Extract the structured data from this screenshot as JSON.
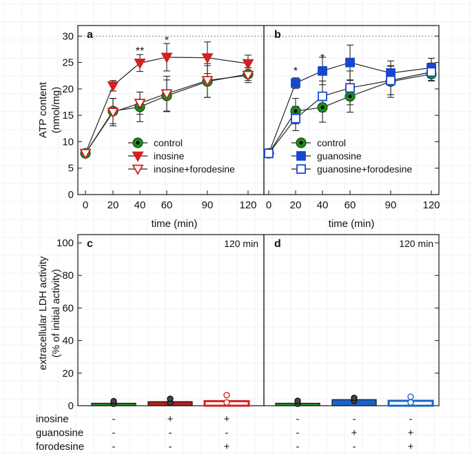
{
  "chart_data": [
    {
      "id": "a",
      "type": "line",
      "panel_label": "a",
      "xlabel": "time (min)",
      "ylabel": "ATP content",
      "ylabel2": "(nmol/mg)",
      "x": [
        0,
        20,
        40,
        60,
        90,
        120
      ],
      "xticks": [
        "0",
        "20",
        "40",
        "60",
        "90",
        "120"
      ],
      "ylim": [
        0,
        32
      ],
      "yticks": [
        "0",
        "5",
        "10",
        "15",
        "20",
        "25",
        "30"
      ],
      "reference_line": 30,
      "series": [
        {
          "name": "control",
          "color": "#1e8c1e",
          "marker": "circle",
          "values": [
            7.8,
            15.8,
            16.6,
            18.7,
            21.4,
            22.8
          ],
          "err": [
            0.6,
            2.4,
            2.8,
            3.0,
            3.0,
            1.2
          ]
        },
        {
          "name": "inosine",
          "color": "#d42020",
          "marker": "triangle-filled",
          "values": [
            7.8,
            20.6,
            24.9,
            26.0,
            25.9,
            24.8
          ],
          "err": [
            0.6,
            1.0,
            1.6,
            2.6,
            3.0,
            1.6
          ]
        },
        {
          "name": "inosine+forodesine",
          "color": "#d42020",
          "marker": "triangle-open",
          "values": [
            7.8,
            15.6,
            17.3,
            19.1,
            21.6,
            22.6
          ],
          "err": [
            0.6,
            2.6,
            2.1,
            3.3,
            3.2,
            1.4
          ]
        }
      ],
      "annotations": [
        {
          "x": 40,
          "y": 27.3,
          "text": "**"
        },
        {
          "x": 60,
          "y": 29.3,
          "text": "*"
        }
      ]
    },
    {
      "id": "b",
      "type": "line",
      "panel_label": "b",
      "xlabel": "time (min)",
      "x": [
        0,
        20,
        40,
        60,
        90,
        120
      ],
      "xticks": [
        "0",
        "20",
        "40",
        "60",
        "90",
        "120"
      ],
      "ylim": [
        0,
        32
      ],
      "reference_line": 30,
      "series": [
        {
          "name": "control",
          "color": "#1e8c1e",
          "marker": "circle",
          "values": [
            7.8,
            15.8,
            16.5,
            18.6,
            21.4,
            22.8
          ],
          "err": [
            0.6,
            2.4,
            2.8,
            3.0,
            3.0,
            1.2
          ]
        },
        {
          "name": "guanosine",
          "color": "#1646d2",
          "marker": "square-filled",
          "values": [
            7.8,
            21.1,
            23.4,
            25.0,
            23.0,
            24.0
          ],
          "err": [
            0.6,
            1.0,
            2.6,
            3.3,
            2.3,
            1.8
          ]
        },
        {
          "name": "guanosine+forodesine",
          "color": "#1646d2",
          "marker": "square-open",
          "values": [
            7.8,
            14.4,
            18.6,
            20.2,
            21.6,
            23.2
          ],
          "err": [
            0.6,
            2.3,
            2.9,
            3.2,
            2.7,
            1.7
          ]
        }
      ],
      "annotations": [
        {
          "x": 20,
          "y": 23.5,
          "text": "*"
        },
        {
          "x": 40,
          "y": 26.0,
          "text": "*"
        }
      ]
    },
    {
      "id": "c",
      "type": "bar",
      "panel_label": "c",
      "time_label": "120 min",
      "ylabel": "extracellular LDH activity",
      "ylabel2": "(% of initial activity)",
      "ylim": [
        0,
        100
      ],
      "yticks": [
        "0",
        "20",
        "40",
        "60",
        "80",
        "100"
      ],
      "bars": [
        {
          "value": 1.5,
          "color": "#1e8c1e",
          "fill": true,
          "points": [
            1.2,
            2.8
          ]
        },
        {
          "value": 2.5,
          "color": "#b02020",
          "fill": true,
          "points": [
            2.0,
            4.2
          ]
        },
        {
          "value": 2.8,
          "color": "#d42020",
          "fill": false,
          "points": [
            2.0,
            6.5
          ]
        }
      ]
    },
    {
      "id": "d",
      "type": "bar",
      "panel_label": "d",
      "time_label": "120 min",
      "ylim": [
        0,
        100
      ],
      "bars": [
        {
          "value": 1.5,
          "color": "#1e8c1e",
          "fill": true,
          "points": [
            1.2,
            3.0
          ]
        },
        {
          "value": 3.7,
          "color": "#1a64c8",
          "fill": true,
          "points": [
            3.0,
            4.8
          ]
        },
        {
          "value": 3.0,
          "color": "#1a64c8",
          "fill": false,
          "points": [
            2.0,
            5.5
          ]
        }
      ]
    }
  ],
  "treatment_table": {
    "rows": [
      {
        "label": "inosine",
        "c": [
          "-",
          "+",
          "+"
        ],
        "d": [
          "-",
          "-",
          "-"
        ]
      },
      {
        "label": "guanosine",
        "c": [
          "-",
          "-",
          "-"
        ],
        "d": [
          "-",
          "+",
          "+"
        ]
      },
      {
        "label": "forodesine",
        "c": [
          "-",
          "-",
          "+"
        ],
        "d": [
          "-",
          "-",
          "+"
        ]
      }
    ]
  }
}
